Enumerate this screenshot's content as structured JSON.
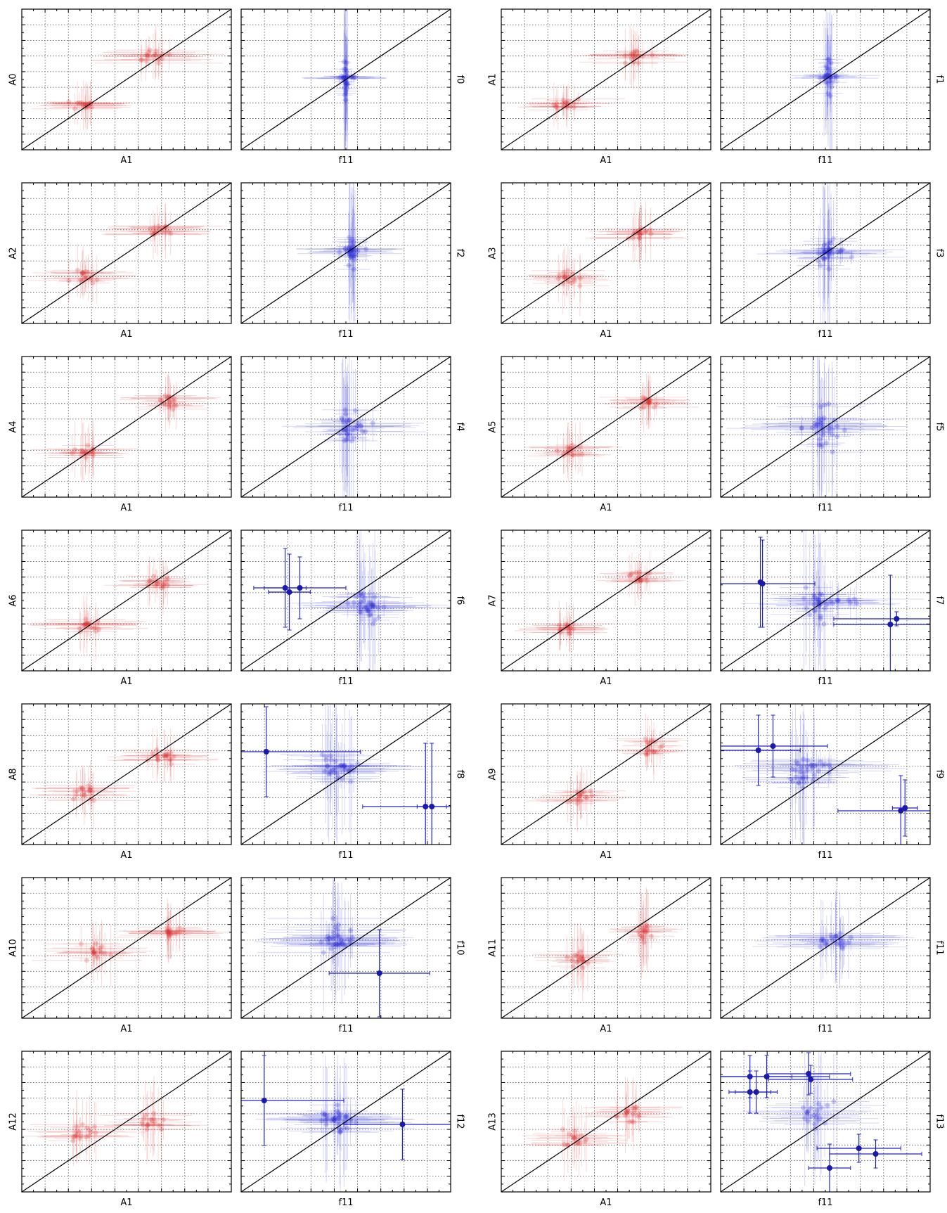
{
  "chart_data": {
    "type": "scatter",
    "note_rows": "7 rows x 4 panels; red panels plot A-parameters against A1, blue panels plot f-parameters against f11; each panel has a black y=x diagonal and dotted grid; axes carry no tick labels",
    "grid": true,
    "colors": {
      "red": "#d62728",
      "blue": "#1f1fd0",
      "diagonal": "#000000"
    },
    "panels": [
      {
        "color": "red",
        "xlabel": "A1",
        "ylabel": "A0",
        "ylabel_side": "left",
        "clusters": [
          [
            0.3,
            0.32,
            0.22,
            0.16,
            18
          ],
          [
            0.62,
            0.66,
            0.28,
            0.19,
            18
          ]
        ],
        "hi": []
      },
      {
        "color": "blue",
        "xlabel": "f11",
        "ylabel": "f0",
        "ylabel_side": "right",
        "clusters": [
          [
            0.5,
            0.5,
            0.05,
            0.55,
            22
          ],
          [
            0.5,
            0.51,
            0.19,
            0.05,
            10
          ]
        ],
        "hi": []
      },
      {
        "color": "red",
        "xlabel": "A1",
        "ylabel": "A1",
        "ylabel_side": "left",
        "clusters": [
          [
            0.3,
            0.33,
            0.22,
            0.16,
            18
          ],
          [
            0.64,
            0.66,
            0.25,
            0.2,
            18
          ]
        ],
        "hi": []
      },
      {
        "color": "blue",
        "xlabel": "f11",
        "ylabel": "f1",
        "ylabel_side": "right",
        "clusters": [
          [
            0.52,
            0.51,
            0.07,
            0.52,
            22
          ],
          [
            0.52,
            0.52,
            0.2,
            0.06,
            10
          ]
        ],
        "hi": []
      },
      {
        "color": "red",
        "xlabel": "A1",
        "ylabel": "A2",
        "ylabel_side": "left",
        "clusters": [
          [
            0.3,
            0.33,
            0.22,
            0.2,
            18
          ],
          [
            0.66,
            0.66,
            0.26,
            0.18,
            18
          ]
        ],
        "hi": []
      },
      {
        "color": "blue",
        "xlabel": "f11",
        "ylabel": "f2",
        "ylabel_side": "right",
        "clusters": [
          [
            0.53,
            0.51,
            0.08,
            0.5,
            22
          ],
          [
            0.52,
            0.52,
            0.25,
            0.08,
            12
          ]
        ],
        "hi": []
      },
      {
        "color": "red",
        "xlabel": "A1",
        "ylabel": "A3",
        "ylabel_side": "left",
        "clusters": [
          [
            0.32,
            0.32,
            0.2,
            0.2,
            18
          ],
          [
            0.66,
            0.64,
            0.22,
            0.2,
            18
          ]
        ],
        "hi": []
      },
      {
        "color": "blue",
        "xlabel": "f11",
        "ylabel": "f3",
        "ylabel_side": "right",
        "clusters": [
          [
            0.5,
            0.5,
            0.12,
            0.5,
            22
          ],
          [
            0.52,
            0.5,
            0.3,
            0.12,
            12
          ]
        ],
        "hi": []
      },
      {
        "color": "red",
        "xlabel": "A1",
        "ylabel": "A4",
        "ylabel_side": "left",
        "clusters": [
          [
            0.3,
            0.33,
            0.22,
            0.2,
            18
          ],
          [
            0.7,
            0.68,
            0.22,
            0.18,
            18
          ]
        ],
        "hi": []
      },
      {
        "color": "blue",
        "xlabel": "f11",
        "ylabel": "f4",
        "ylabel_side": "right",
        "clusters": [
          [
            0.5,
            0.5,
            0.15,
            0.55,
            22
          ],
          [
            0.55,
            0.5,
            0.28,
            0.12,
            12
          ]
        ],
        "hi": []
      },
      {
        "color": "red",
        "xlabel": "A1",
        "ylabel": "A5",
        "ylabel_side": "left",
        "clusters": [
          [
            0.32,
            0.33,
            0.22,
            0.2,
            18
          ],
          [
            0.7,
            0.68,
            0.2,
            0.18,
            18
          ]
        ],
        "hi": []
      },
      {
        "color": "blue",
        "xlabel": "f11",
        "ylabel": "f5",
        "ylabel_side": "right",
        "clusters": [
          [
            0.5,
            0.5,
            0.2,
            0.55,
            22
          ],
          [
            0.5,
            0.5,
            0.35,
            0.15,
            14
          ]
        ],
        "hi": []
      },
      {
        "color": "red",
        "xlabel": "A1",
        "ylabel": "A6",
        "ylabel_side": "left",
        "clusters": [
          [
            0.32,
            0.33,
            0.24,
            0.2,
            18
          ],
          [
            0.66,
            0.62,
            0.22,
            0.18,
            18
          ]
        ],
        "hi": []
      },
      {
        "color": "blue",
        "xlabel": "f11",
        "ylabel": "f6",
        "ylabel_side": "right",
        "clusters": [
          [
            0.6,
            0.45,
            0.2,
            0.5,
            22
          ],
          [
            0.6,
            0.45,
            0.35,
            0.15,
            14
          ]
        ],
        "hi": [
          {
            "x": 0.21,
            "y": 0.59,
            "ex": 0.1,
            "ey": 0.28
          },
          {
            "x": 0.23,
            "y": 0.56,
            "ex": 0.1,
            "ey": 0.27
          },
          {
            "x": 0.28,
            "y": 0.59,
            "ex": 0.22,
            "ey": 0.22
          }
        ]
      },
      {
        "color": "red",
        "xlabel": "A1",
        "ylabel": "A7",
        "ylabel_side": "left",
        "clusters": [
          [
            0.32,
            0.3,
            0.2,
            0.16,
            18
          ],
          [
            0.66,
            0.66,
            0.2,
            0.16,
            18
          ]
        ],
        "hi": []
      },
      {
        "color": "blue",
        "xlabel": "f11",
        "ylabel": "f7",
        "ylabel_side": "right",
        "clusters": [
          [
            0.45,
            0.5,
            0.22,
            0.5,
            22
          ],
          [
            0.55,
            0.5,
            0.35,
            0.15,
            14
          ]
        ],
        "hi": [
          {
            "x": 0.19,
            "y": 0.63,
            "ex": 0.0,
            "ey": 0.32
          },
          {
            "x": 0.2,
            "y": 0.62,
            "ex": 0.25,
            "ey": 0.31
          },
          {
            "x": 0.81,
            "y": 0.33,
            "ex": 0.27,
            "ey": 0.35
          },
          {
            "x": 0.84,
            "y": 0.37,
            "ex": 0.3,
            "ey": 0.05
          }
        ]
      },
      {
        "color": "red",
        "xlabel": "A1",
        "ylabel": "A8",
        "ylabel_side": "left",
        "clusters": [
          [
            0.3,
            0.37,
            0.22,
            0.2,
            18
          ],
          [
            0.68,
            0.62,
            0.22,
            0.18,
            18
          ]
        ],
        "hi": []
      },
      {
        "color": "blue",
        "xlabel": "f11",
        "ylabel": "f8",
        "ylabel_side": "right",
        "clusters": [
          [
            0.45,
            0.55,
            0.25,
            0.5,
            22
          ],
          [
            0.5,
            0.55,
            0.35,
            0.15,
            14
          ]
        ],
        "hi": [
          {
            "x": 0.12,
            "y": 0.66,
            "ex": 0.45,
            "ey": 0.32
          },
          {
            "x": 0.88,
            "y": 0.27,
            "ex": 0.3,
            "ey": 0.45
          },
          {
            "x": 0.91,
            "y": 0.27,
            "ex": 0.07,
            "ey": 0.45
          }
        ]
      },
      {
        "color": "red",
        "xlabel": "A1",
        "ylabel": "A9",
        "ylabel_side": "left",
        "clusters": [
          [
            0.38,
            0.33,
            0.22,
            0.2,
            18
          ],
          [
            0.72,
            0.7,
            0.18,
            0.2,
            18
          ]
        ],
        "hi": []
      },
      {
        "color": "blue",
        "xlabel": "f11",
        "ylabel": "f9",
        "ylabel_side": "right",
        "clusters": [
          [
            0.4,
            0.52,
            0.25,
            0.5,
            22
          ],
          [
            0.45,
            0.55,
            0.35,
            0.15,
            14
          ]
        ],
        "hi": [
          {
            "x": 0.18,
            "y": 0.67,
            "ex": 0.2,
            "ey": 0.25
          },
          {
            "x": 0.25,
            "y": 0.7,
            "ex": 0.26,
            "ey": 0.22
          },
          {
            "x": 0.86,
            "y": 0.24,
            "ex": 0.3,
            "ey": 0.25
          },
          {
            "x": 0.88,
            "y": 0.26,
            "ex": 0.06,
            "ey": 0.2
          }
        ]
      },
      {
        "color": "red",
        "xlabel": "A1",
        "ylabel": "A10",
        "ylabel_side": "left",
        "clusters": [
          [
            0.36,
            0.48,
            0.24,
            0.22,
            18
          ],
          [
            0.72,
            0.6,
            0.24,
            0.22,
            18
          ]
        ],
        "hi": []
      },
      {
        "color": "blue",
        "xlabel": "f11",
        "ylabel": "f10",
        "ylabel_side": "right",
        "clusters": [
          [
            0.45,
            0.55,
            0.3,
            0.45,
            22
          ],
          [
            0.45,
            0.55,
            0.35,
            0.15,
            14
          ]
        ],
        "hi": [
          {
            "x": 0.66,
            "y": 0.32,
            "ex": 0.24,
            "ey": 0.31
          }
        ]
      },
      {
        "color": "red",
        "xlabel": "A1",
        "ylabel": "A11",
        "ylabel_side": "left",
        "clusters": [
          [
            0.38,
            0.42,
            0.2,
            0.22,
            18
          ],
          [
            0.68,
            0.6,
            0.16,
            0.28,
            18
          ]
        ],
        "hi": []
      },
      {
        "color": "blue",
        "xlabel": "f11",
        "ylabel": "f11",
        "ylabel_side": "right",
        "clusters": [
          [
            0.55,
            0.55,
            0.3,
            0.3,
            26
          ]
        ],
        "hi": []
      },
      {
        "color": "red",
        "xlabel": "A1",
        "ylabel": "A12",
        "ylabel_side": "left",
        "clusters": [
          [
            0.3,
            0.42,
            0.24,
            0.25,
            18
          ],
          [
            0.62,
            0.5,
            0.22,
            0.25,
            18
          ]
        ],
        "hi": []
      },
      {
        "color": "blue",
        "xlabel": "f11",
        "ylabel": "f12",
        "ylabel_side": "right",
        "clusters": [
          [
            0.45,
            0.5,
            0.3,
            0.45,
            22
          ],
          [
            0.45,
            0.52,
            0.35,
            0.15,
            14
          ]
        ],
        "hi": [
          {
            "x": 0.11,
            "y": 0.65,
            "ex": 0.38,
            "ey": 0.32
          },
          {
            "x": 0.77,
            "y": 0.48,
            "ex": 0.28,
            "ey": 0.25
          }
        ]
      },
      {
        "color": "red",
        "xlabel": "A1",
        "ylabel": "A13",
        "ylabel_side": "left",
        "clusters": [
          [
            0.35,
            0.38,
            0.22,
            0.25,
            18
          ],
          [
            0.62,
            0.55,
            0.22,
            0.25,
            18
          ]
        ],
        "hi": []
      },
      {
        "color": "blue",
        "xlabel": "f11",
        "ylabel": "f13",
        "ylabel_side": "right",
        "clusters": [
          [
            0.45,
            0.55,
            0.3,
            0.45,
            22
          ]
        ],
        "hi": [
          {
            "x": 0.14,
            "y": 0.82,
            "ex": 0.2,
            "ey": 0.15
          },
          {
            "x": 0.22,
            "y": 0.82,
            "ex": 0.3,
            "ey": 0.15
          },
          {
            "x": 0.42,
            "y": 0.84,
            "ex": 0.2,
            "ey": 0.15
          },
          {
            "x": 0.43,
            "y": 0.8,
            "ex": 0.2,
            "ey": 0.1
          },
          {
            "x": 0.14,
            "y": 0.71,
            "ex": 0.1,
            "ey": 0.15
          },
          {
            "x": 0.17,
            "y": 0.71,
            "ex": 0.1,
            "ey": 0.15
          },
          {
            "x": 0.52,
            "y": 0.17,
            "ex": 0.1,
            "ey": 0.17
          },
          {
            "x": 0.66,
            "y": 0.31,
            "ex": 0.2,
            "ey": 0.1
          },
          {
            "x": 0.74,
            "y": 0.27,
            "ex": 0.22,
            "ey": 0.1
          }
        ]
      }
    ]
  }
}
